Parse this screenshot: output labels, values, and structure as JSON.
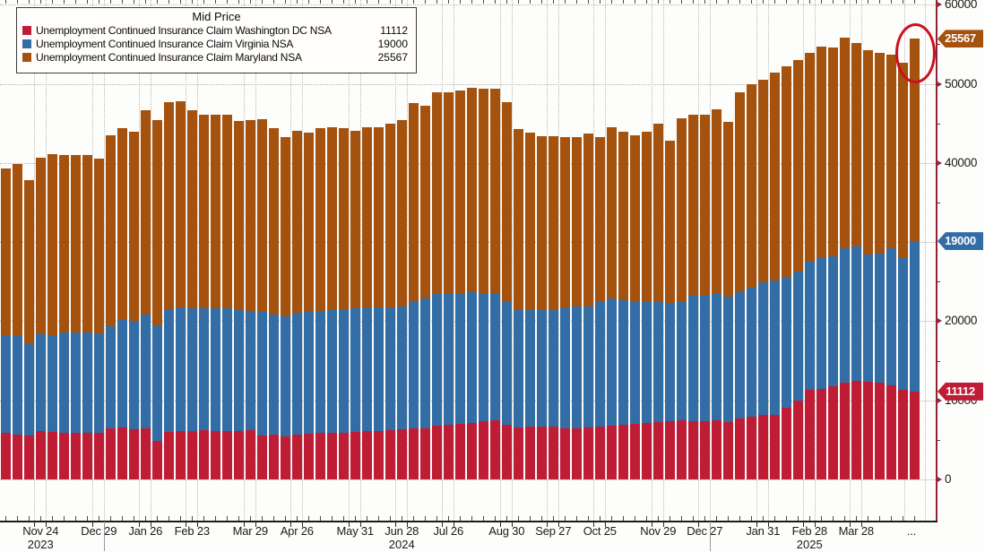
{
  "legend": {
    "title": "Mid Price",
    "items": [
      {
        "label": "Unemployment Continued Insurance Claim Washington DC NSA",
        "value": "11112",
        "color": "#bf1c36"
      },
      {
        "label": "Unemployment Continued Insurance Claim Virginia NSA",
        "value": "19000",
        "color": "#336da6"
      },
      {
        "label": "Unemployment Continued Insurance Claim Maryland NSA",
        "value": "25567",
        "color": "#a5520f"
      }
    ]
  },
  "chart_data": {
    "type": "bar",
    "stacked": true,
    "x_unit": "weekly",
    "title": "Mid Price",
    "series": [
      {
        "name": "Unemployment Continued Insurance Claim Washington DC NSA",
        "color": "#bf1c36",
        "last_value": 11112,
        "values": [
          5900,
          5700,
          5500,
          6100,
          6000,
          5900,
          5900,
          5900,
          5900,
          6500,
          6600,
          6300,
          6500,
          4900,
          6000,
          6100,
          6100,
          6200,
          6100,
          6100,
          6100,
          6200,
          5500,
          5700,
          5400,
          5700,
          5800,
          5900,
          5900,
          5900,
          6000,
          6100,
          6100,
          6200,
          6300,
          6500,
          6500,
          6800,
          6900,
          7000,
          7100,
          7400,
          7500,
          6900,
          6600,
          6700,
          6700,
          6700,
          6500,
          6500,
          6600,
          6700,
          6800,
          6900,
          7000,
          7100,
          7200,
          7400,
          7500,
          7400,
          7400,
          7500,
          7200,
          7700,
          7900,
          8200,
          8200,
          9100,
          10000,
          11300,
          11400,
          11800,
          12200,
          12500,
          12300,
          12200,
          11900,
          11300,
          11112
        ]
      },
      {
        "name": "Unemployment Continued Insurance Claim Virginia NSA",
        "color": "#336da6",
        "last_value": 19000,
        "values": [
          12300,
          12400,
          11700,
          12200,
          12200,
          12700,
          12700,
          12700,
          12600,
          12900,
          13600,
          13700,
          14300,
          14600,
          15500,
          15600,
          15500,
          15400,
          15500,
          15500,
          15300,
          15100,
          15700,
          15100,
          15200,
          15400,
          15400,
          15400,
          15500,
          15600,
          15600,
          15600,
          15600,
          15500,
          15600,
          16000,
          16400,
          16600,
          16500,
          16600,
          16600,
          16200,
          16100,
          15500,
          14800,
          14700,
          14700,
          14700,
          15200,
          15400,
          15300,
          15700,
          16100,
          15800,
          15400,
          15400,
          15200,
          14900,
          15000,
          15800,
          15800,
          15900,
          15900,
          16000,
          16300,
          16700,
          16900,
          16500,
          16300,
          16200,
          16600,
          16400,
          17000,
          16900,
          16100,
          16300,
          17300,
          16700,
          19000
        ]
      },
      {
        "name": "Unemployment Continued Insurance Claim Maryland NSA",
        "color": "#a5520f",
        "last_value": 25567,
        "values": [
          21100,
          21800,
          20600,
          22400,
          22900,
          22400,
          22400,
          22400,
          22000,
          24100,
          24200,
          23900,
          25900,
          25900,
          26200,
          26100,
          25100,
          24500,
          24500,
          24500,
          23900,
          24100,
          24300,
          23600,
          22700,
          23000,
          22600,
          23100,
          23100,
          22900,
          22500,
          22800,
          22800,
          23300,
          23500,
          25100,
          24300,
          25500,
          25500,
          25500,
          25800,
          25800,
          25800,
          25300,
          22900,
          22400,
          22000,
          22000,
          21600,
          21400,
          21800,
          20900,
          21600,
          21200,
          21100,
          21400,
          22600,
          20500,
          23100,
          22900,
          22900,
          23400,
          22100,
          25200,
          25700,
          25600,
          26300,
          26600,
          26700,
          26400,
          26700,
          26400,
          26600,
          25700,
          25800,
          25400,
          24500,
          24700,
          25567
        ]
      }
    ],
    "x_ticks": [
      {
        "label": "Nov 24",
        "index": 3,
        "year": "2023"
      },
      {
        "label": "Dec 29",
        "index": 8
      },
      {
        "label": "Jan 26",
        "index": 12
      },
      {
        "label": "Feb 23",
        "index": 16
      },
      {
        "label": "Mar 29",
        "index": 21
      },
      {
        "label": "Apr 26",
        "index": 25
      },
      {
        "label": "May 31",
        "index": 30
      },
      {
        "label": "Jun 28",
        "index": 34,
        "year": "2024"
      },
      {
        "label": "Jul 26",
        "index": 38
      },
      {
        "label": "Aug 30",
        "index": 43
      },
      {
        "label": "Sep 27",
        "index": 47
      },
      {
        "label": "Oct 25",
        "index": 51
      },
      {
        "label": "Nov 29",
        "index": 56
      },
      {
        "label": "Dec 27",
        "index": 60
      },
      {
        "label": "Jan 31",
        "index": 65
      },
      {
        "label": "Feb 28",
        "index": 69,
        "year": "2025"
      },
      {
        "label": "Mar 28",
        "index": 73
      }
    ],
    "x_overflow_label": "...",
    "year_separators_after": [
      "Dec 29",
      "Dec 27"
    ],
    "y_axis": {
      "min": 0,
      "max": 60000,
      "major_step": 10000,
      "minor_step": 5000,
      "labels": [
        {
          "value": 0,
          "text": "0"
        },
        {
          "value": 10000,
          "text": "10000"
        },
        {
          "value": 20000,
          "text": "20000"
        },
        {
          "value": 40000,
          "text": "40000"
        },
        {
          "value": 50000,
          "text": "50000"
        },
        {
          "value": 60000,
          "text": "60000"
        }
      ]
    },
    "badges": [
      {
        "text": "25567",
        "at": 55679,
        "color": "#a5520f"
      },
      {
        "text": "19000",
        "at": 30112,
        "color": "#336da6"
      },
      {
        "text": "11112",
        "at": 11112,
        "color": "#bf1c36"
      }
    ],
    "annotation": {
      "type": "ellipse",
      "target": "last-bar",
      "color": "#cb1120"
    },
    "grid": "dotted"
  },
  "colors": {
    "background": "#fdfdfb",
    "right_axis": "#8e2433",
    "bottom_axis": "#1c1c1c",
    "tick_arrow": "#9b2235",
    "gridline": "#b9b9b7",
    "text": "#1a1a1a"
  }
}
